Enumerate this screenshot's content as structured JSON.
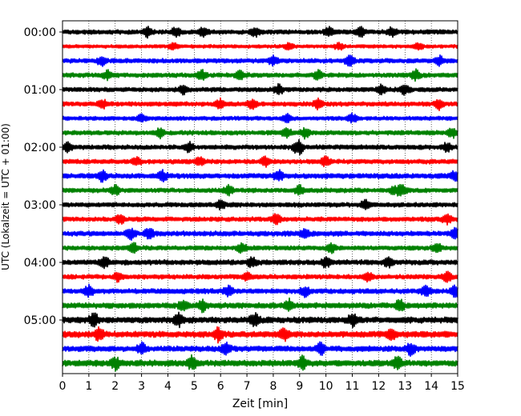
{
  "chart_data": {
    "type": "line",
    "title": "",
    "xlabel": "Zeit  [min]",
    "ylabel": "UTC (Lokalzeit = UTC + 01:00)",
    "xlim": [
      0,
      15
    ],
    "x_ticks": [
      "0",
      "1",
      "2",
      "3",
      "4",
      "5",
      "6",
      "7",
      "8",
      "9",
      "10",
      "11",
      "12",
      "13",
      "14",
      "15"
    ],
    "y_tick_labels": [
      "00:00",
      "01:00",
      "02:00",
      "03:00",
      "04:00",
      "05:00"
    ],
    "grid": "vertical dotted at each minute",
    "trace_interval_minutes": 15,
    "trace_count": 24,
    "trace_start_times": [
      "00:00",
      "00:15",
      "00:30",
      "00:45",
      "01:00",
      "01:15",
      "01:30",
      "01:45",
      "02:00",
      "02:15",
      "02:30",
      "02:45",
      "03:00",
      "03:15",
      "03:30",
      "03:45",
      "04:00",
      "04:15",
      "04:30",
      "04:45",
      "05:00",
      "05:15",
      "05:30",
      "05:45"
    ],
    "color_cycle": [
      "#000000",
      "#ff0000",
      "#0000ff",
      "#008000"
    ],
    "series": [
      {
        "start": "00:00",
        "color": "#000000",
        "amplitude": 0.45,
        "bursts": [
          3.25,
          4.3,
          5.35,
          7.3,
          10.1,
          11.3,
          12.5
        ]
      },
      {
        "start": "00:15",
        "color": "#ff0000",
        "amplitude": 0.35,
        "bursts": [
          4.2,
          8.6,
          10.5,
          13.5
        ]
      },
      {
        "start": "00:30",
        "color": "#0000ff",
        "amplitude": 0.45,
        "bursts": [
          1.5,
          8.0,
          10.9,
          14.3
        ]
      },
      {
        "start": "00:45",
        "color": "#008000",
        "amplitude": 0.45,
        "bursts": [
          1.7,
          5.3,
          6.7,
          9.7,
          13.4
        ]
      },
      {
        "start": "01:00",
        "color": "#000000",
        "amplitude": 0.45,
        "bursts": [
          4.6,
          8.2,
          12.1,
          13.0
        ]
      },
      {
        "start": "01:15",
        "color": "#ff0000",
        "amplitude": 0.45,
        "bursts": [
          1.5,
          6.0,
          7.2,
          9.7,
          14.3
        ]
      },
      {
        "start": "01:30",
        "color": "#0000ff",
        "amplitude": 0.4,
        "bursts": [
          3.0,
          8.5,
          11.0
        ]
      },
      {
        "start": "01:45",
        "color": "#008000",
        "amplitude": 0.45,
        "bursts": [
          3.7,
          8.5,
          9.2,
          14.8
        ]
      },
      {
        "start": "02:00",
        "color": "#000000",
        "amplitude": 0.45,
        "bursts": [
          0.2,
          4.8,
          8.9,
          9.0,
          14.6
        ]
      },
      {
        "start": "02:15",
        "color": "#ff0000",
        "amplitude": 0.45,
        "bursts": [
          2.8,
          5.2,
          7.7,
          10.0
        ]
      },
      {
        "start": "02:30",
        "color": "#0000ff",
        "amplitude": 0.5,
        "bursts": [
          1.5,
          3.8,
          8.2,
          14.9
        ]
      },
      {
        "start": "02:45",
        "color": "#008000",
        "amplitude": 0.45,
        "bursts": [
          2.0,
          6.3,
          9.0,
          12.6,
          12.9
        ]
      },
      {
        "start": "03:00",
        "color": "#000000",
        "amplitude": 0.45,
        "bursts": [
          6.0,
          11.5
        ]
      },
      {
        "start": "03:15",
        "color": "#ff0000",
        "amplitude": 0.45,
        "bursts": [
          2.2,
          8.1,
          14.6
        ]
      },
      {
        "start": "03:30",
        "color": "#0000ff",
        "amplitude": 0.5,
        "bursts": [
          2.6,
          3.3,
          9.2,
          14.9
        ]
      },
      {
        "start": "03:45",
        "color": "#008000",
        "amplitude": 0.45,
        "bursts": [
          2.7,
          6.8,
          10.2,
          14.2
        ]
      },
      {
        "start": "04:00",
        "color": "#000000",
        "amplitude": 0.5,
        "bursts": [
          1.6,
          7.2,
          10.0,
          12.4
        ]
      },
      {
        "start": "04:15",
        "color": "#ff0000",
        "amplitude": 0.45,
        "bursts": [
          2.1,
          7.0,
          11.6,
          14.6
        ]
      },
      {
        "start": "04:30",
        "color": "#0000ff",
        "amplitude": 0.5,
        "bursts": [
          1.0,
          6.3,
          9.2,
          13.8,
          14.9
        ]
      },
      {
        "start": "04:45",
        "color": "#008000",
        "amplitude": 0.55,
        "bursts": [
          4.6,
          5.3,
          8.6,
          12.8
        ]
      },
      {
        "start": "05:00",
        "color": "#000000",
        "amplitude": 0.6,
        "bursts": [
          1.2,
          4.4,
          7.3,
          11.0
        ]
      },
      {
        "start": "05:15",
        "color": "#ff0000",
        "amplitude": 0.6,
        "bursts": [
          1.4,
          5.9,
          8.4,
          12.5
        ]
      },
      {
        "start": "05:30",
        "color": "#0000ff",
        "amplitude": 0.55,
        "bursts": [
          3.0,
          6.2,
          9.8,
          13.2
        ]
      },
      {
        "start": "05:45",
        "color": "#008000",
        "amplitude": 0.6,
        "bursts": [
          2.0,
          4.9,
          9.1,
          12.7
        ]
      }
    ]
  }
}
